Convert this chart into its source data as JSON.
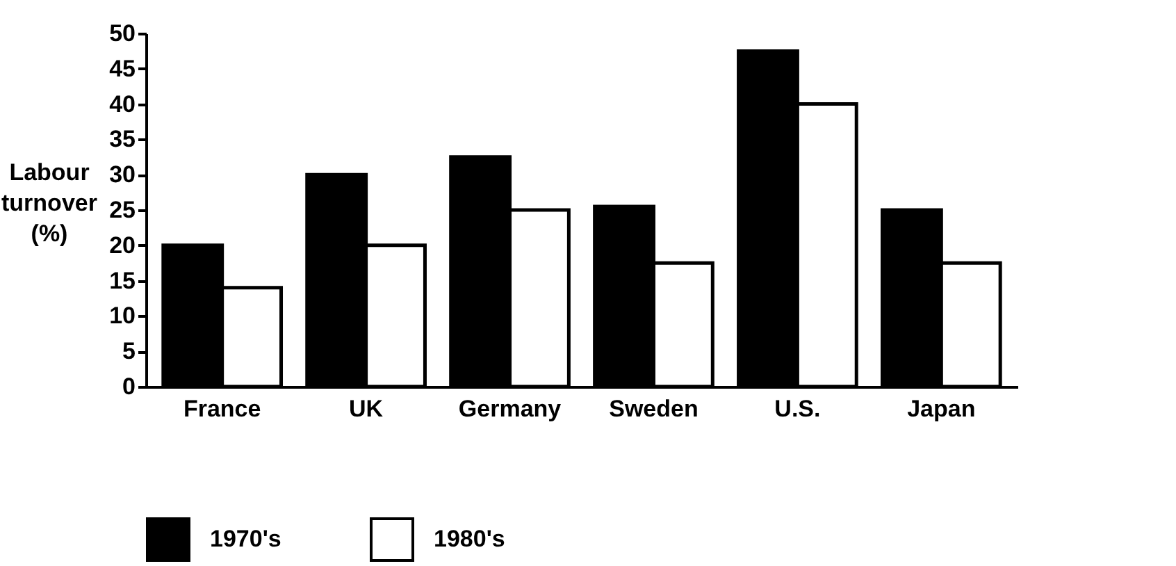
{
  "chart_data": {
    "type": "bar",
    "ylabel": "Labour turnover (%)",
    "categories": [
      "France",
      "UK",
      "Germany",
      "Sweden",
      "U.S.",
      "Japan"
    ],
    "series": [
      {
        "name": "1970's",
        "color": "#000000",
        "values": [
          20,
          30,
          32.5,
          25.5,
          47.5,
          25
        ]
      },
      {
        "name": "1980's",
        "color": "#ffffff",
        "values": [
          14,
          20,
          25,
          17.5,
          40,
          17.5
        ]
      }
    ],
    "ylim": [
      0,
      50
    ],
    "yticks": [
      0,
      5,
      10,
      15,
      20,
      25,
      30,
      35,
      40,
      45,
      50
    ],
    "grid": false,
    "legend": "bottom"
  }
}
